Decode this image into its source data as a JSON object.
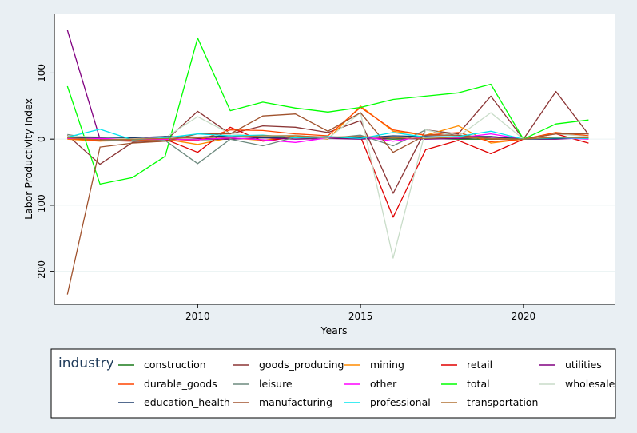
{
  "chart_data": {
    "type": "line",
    "xlabel": "Years",
    "ylabel": "Labor Productivity Index",
    "xlim": [
      2005.6,
      2022.8
    ],
    "ylim": [
      -250,
      190
    ],
    "xticks": [
      2010,
      2015,
      2020
    ],
    "yticks": [
      100,
      0,
      -100,
      -200
    ],
    "grid": true,
    "legend": {
      "title": "industry",
      "placement": "bottom",
      "columns": 5
    },
    "x": [
      2006,
      2007,
      2008,
      2009,
      2010,
      2011,
      2012,
      2013,
      2014,
      2015,
      2016,
      2017,
      2018,
      2019,
      2020,
      2021,
      2022
    ],
    "series": [
      {
        "name": "construction",
        "color": "#1a7a1a",
        "values": [
          3,
          2,
          0,
          0,
          -1,
          0,
          2,
          2,
          1,
          2,
          0,
          1,
          0,
          0,
          0,
          1,
          1
        ]
      },
      {
        "name": "goods_producing",
        "color": "#8b3535",
        "values": [
          6,
          -38,
          -5,
          -3,
          42,
          8,
          20,
          18,
          10,
          28,
          -82,
          14,
          8,
          65,
          0,
          72,
          7
        ]
      },
      {
        "name": "mining",
        "color": "#ff8c00",
        "values": [
          0,
          -3,
          -2,
          0,
          -8,
          2,
          -2,
          5,
          0,
          50,
          12,
          6,
          20,
          -6,
          0,
          10,
          5
        ]
      },
      {
        "name": "retail",
        "color": "#e00000",
        "values": [
          5,
          -2,
          -3,
          0,
          -20,
          18,
          -3,
          3,
          2,
          4,
          -118,
          -16,
          -2,
          -22,
          0,
          8,
          -6
        ]
      },
      {
        "name": "utilities",
        "color": "#800080",
        "values": [
          165,
          0,
          -1,
          4,
          1,
          0,
          2,
          0,
          1,
          0,
          2,
          0,
          1,
          3,
          0,
          0,
          2
        ]
      },
      {
        "name": "durable_goods",
        "color": "#ff4500",
        "values": [
          1,
          -2,
          -2,
          0,
          -2,
          14,
          13,
          8,
          5,
          48,
          14,
          6,
          10,
          -4,
          0,
          10,
          5
        ]
      },
      {
        "name": "leisure",
        "color": "#6d8a7f",
        "values": [
          7,
          -1,
          -3,
          -2,
          -37,
          0,
          -10,
          3,
          1,
          6,
          -10,
          14,
          5,
          4,
          0,
          3,
          1
        ]
      },
      {
        "name": "other",
        "color": "#ff00ff",
        "values": [
          1,
          1,
          0,
          0,
          -1,
          2,
          -1,
          -5,
          2,
          4,
          -3,
          4,
          2,
          8,
          0,
          2,
          0
        ]
      },
      {
        "name": "total",
        "color": "#00ff00",
        "values": [
          80,
          -68,
          -58,
          -26,
          153,
          43,
          56,
          47,
          41,
          48,
          60,
          65,
          70,
          83,
          0,
          23,
          29
        ]
      },
      {
        "name": "wholesale",
        "color": "#c8dcc8",
        "values": [
          5,
          3,
          0,
          2,
          34,
          8,
          4,
          6,
          1,
          40,
          -180,
          14,
          4,
          40,
          0,
          8,
          4
        ]
      },
      {
        "name": "education_health",
        "color": "#1a3a6a",
        "values": [
          2,
          3,
          2,
          4,
          3,
          5,
          2,
          3,
          3,
          2,
          5,
          4,
          3,
          4,
          0,
          1,
          3
        ]
      },
      {
        "name": "manufacturing",
        "color": "#a0522d",
        "values": [
          -235,
          -12,
          -6,
          -3,
          8,
          8,
          35,
          38,
          12,
          40,
          -20,
          6,
          6,
          0,
          0,
          8,
          8
        ]
      },
      {
        "name": "professional",
        "color": "#00e5ee",
        "values": [
          3,
          15,
          -1,
          2,
          8,
          5,
          6,
          2,
          4,
          1,
          10,
          3,
          4,
          12,
          0,
          2,
          1
        ]
      },
      {
        "name": "transportation",
        "color": "#b07030",
        "values": [
          2,
          -1,
          0,
          1,
          2,
          3,
          5,
          5,
          3,
          4,
          2,
          1,
          3,
          1,
          0,
          3,
          2
        ]
      }
    ]
  }
}
